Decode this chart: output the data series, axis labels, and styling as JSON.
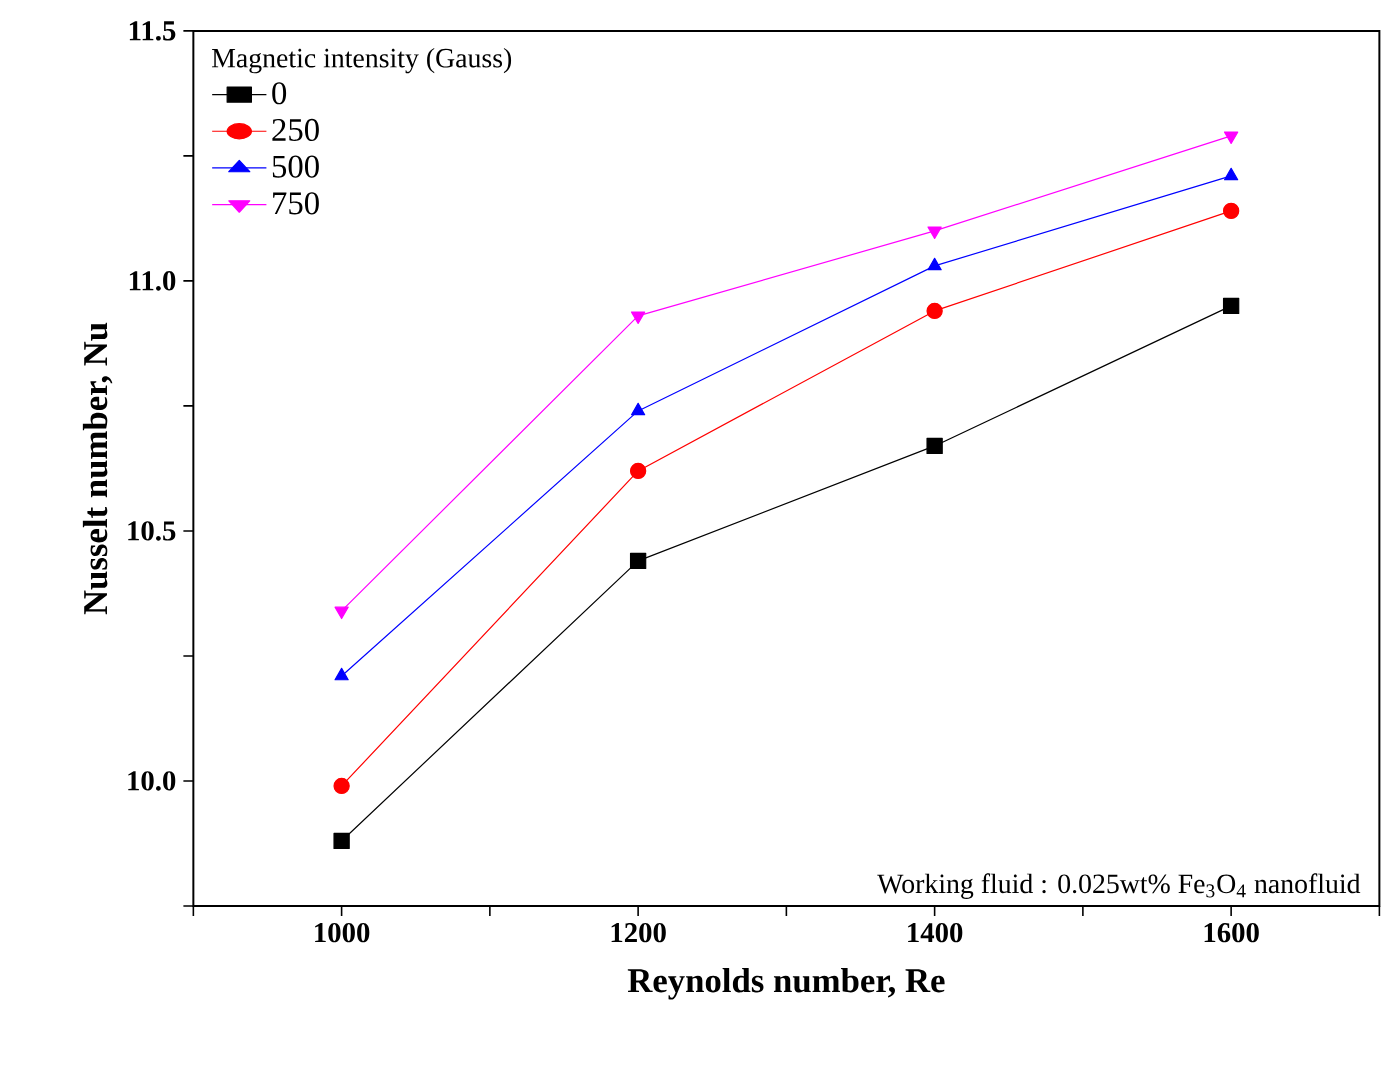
{
  "chart_data": {
    "type": "line",
    "xlabel": "Reynolds number, Re",
    "ylabel": "Nusselt number, Nu",
    "legend_title": "Magnetic intensity (Gauss)",
    "annotations": [
      "Working fluid : 0.025wt% Fe$_{3}$O$_{4}$ nanofluid"
    ],
    "x": [
      1000,
      1200,
      1400,
      1600
    ],
    "series": [
      {
        "name": "0",
        "color": "#000000",
        "marker": "square",
        "values": [
          9.88,
          10.44,
          10.67,
          10.95
        ]
      },
      {
        "name": "250",
        "color": "#ff0000",
        "marker": "circle",
        "values": [
          9.99,
          10.62,
          10.94,
          11.14
        ]
      },
      {
        "name": "500",
        "color": "#0000ff",
        "marker": "triangle",
        "values": [
          10.21,
          10.74,
          11.03,
          11.21
        ]
      },
      {
        "name": "750",
        "color": "#ff00ff",
        "marker": "triangle-down",
        "values": [
          10.34,
          10.93,
          11.1,
          11.29
        ]
      }
    ],
    "xlim": [
      900,
      1700
    ],
    "ylim": [
      9.75,
      11.5
    ],
    "xticks": [
      {
        "value": 900,
        "label": null
      },
      1000,
      {
        "value": 1100,
        "label": null
      },
      1200,
      {
        "value": 1300,
        "label": null
      },
      1400,
      {
        "value": 1500,
        "label": null
      },
      1600,
      {
        "value": 1700,
        "label": null
      }
    ],
    "yticks": [
      {
        "value": 9.75,
        "label": null
      },
      {
        "value": 10.0,
        "label": "10.0"
      },
      {
        "value": 10.25,
        "label": null
      },
      {
        "value": 10.5,
        "label": "10.5"
      },
      {
        "value": 10.75,
        "label": null
      },
      {
        "value": 11.0,
        "label": "11.0"
      },
      {
        "value": 11.25,
        "label": null
      },
      {
        "value": 11.5,
        "label": "11.5"
      }
    ],
    "legend": "top left",
    "grid": false,
    "line_style": "solid"
  }
}
